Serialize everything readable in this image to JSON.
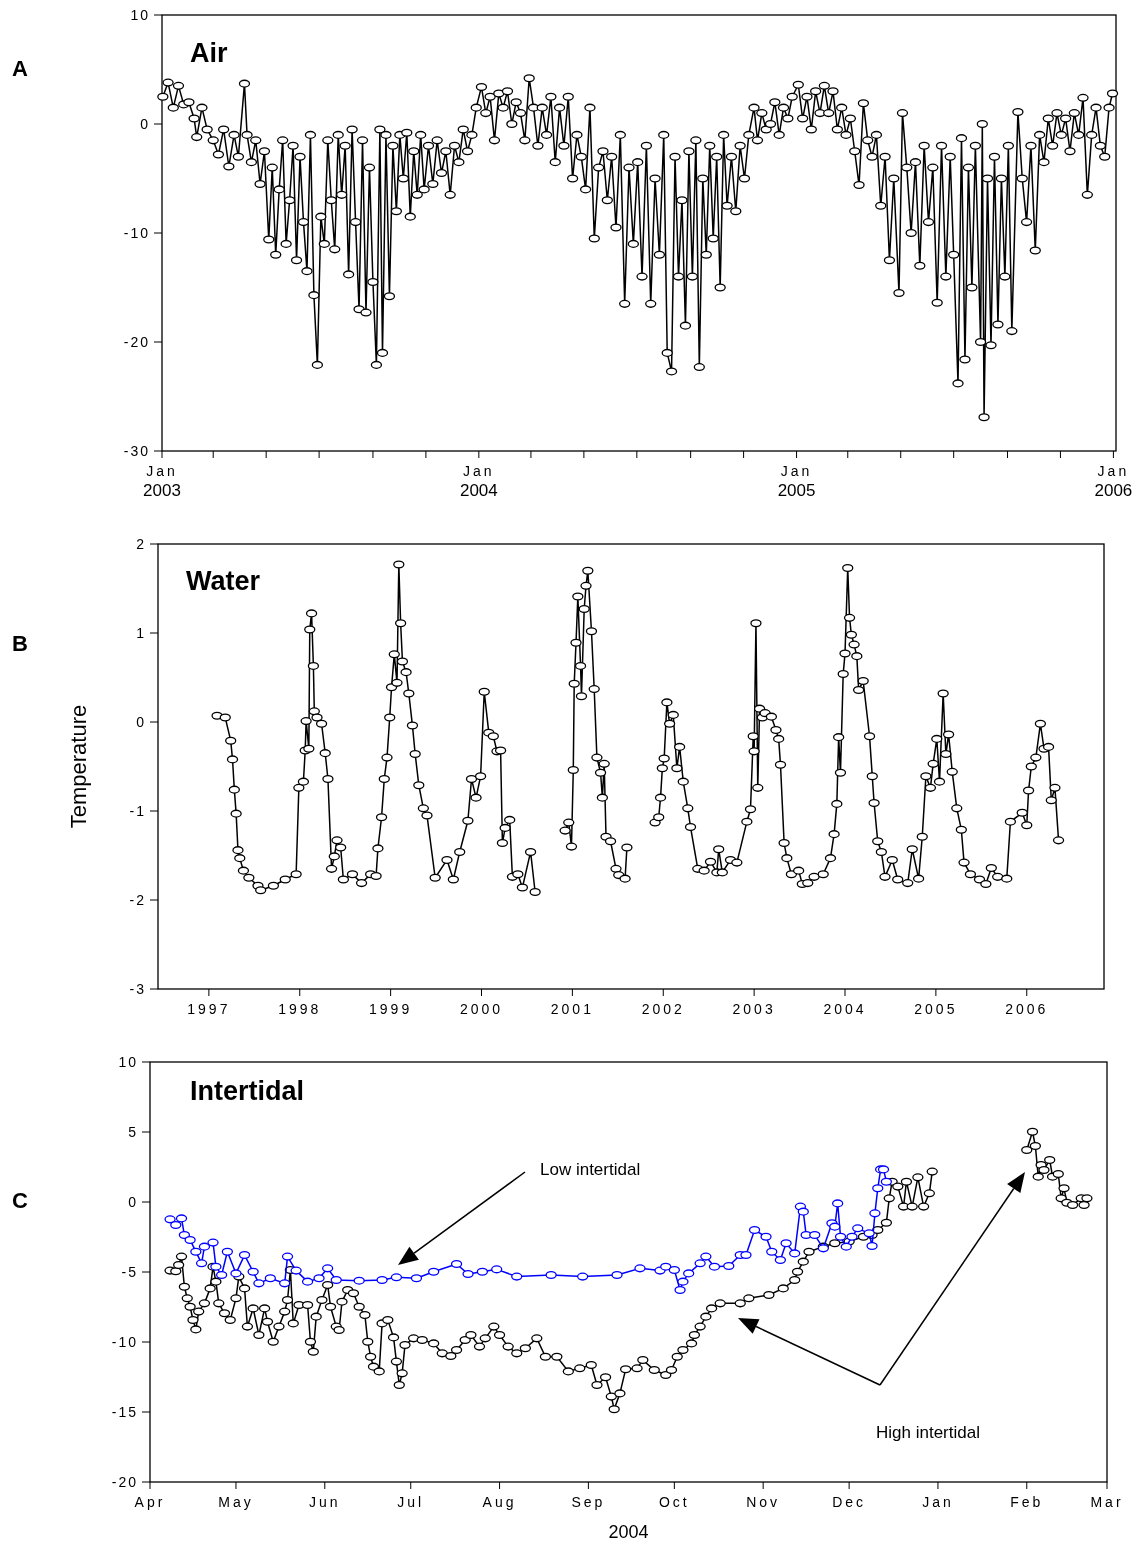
{
  "chart_data": [
    {
      "type": "line",
      "title": "Air",
      "annotations": [
        "A"
      ],
      "marker": "circle",
      "xlim": [
        "2003-01-01",
        "2006-01-04"
      ],
      "xticks": [
        {
          "value": "2003-01-01",
          "label": "Jan\n2003"
        },
        {
          "value": "2003-03-01",
          "label": null
        },
        {
          "value": "2003-05-01",
          "label": null
        },
        {
          "value": "2003-07-01",
          "label": null
        },
        {
          "value": "2003-09-01",
          "label": null
        },
        {
          "value": "2003-11-01",
          "label": null
        },
        {
          "value": "2004-01-01",
          "label": "Jan\n2004"
        },
        {
          "value": "2004-03-01",
          "label": null
        },
        {
          "value": "2004-05-01",
          "label": null
        },
        {
          "value": "2004-07-01",
          "label": null
        },
        {
          "value": "2004-09-01",
          "label": null
        },
        {
          "value": "2004-11-01",
          "label": null
        },
        {
          "value": "2005-01-01",
          "label": "Jan\n2005"
        },
        {
          "value": "2005-03-01",
          "label": null
        },
        {
          "value": "2005-05-01",
          "label": null
        },
        {
          "value": "2005-07-01",
          "label": null
        },
        {
          "value": "2005-09-01",
          "label": null
        },
        {
          "value": "2005-11-01",
          "label": null
        },
        {
          "value": "2006-01-01",
          "label": "Jan\n2006"
        }
      ],
      "ylim": [
        -30,
        10
      ],
      "yticks": [
        -30,
        -20,
        -10,
        0,
        10
      ],
      "series": [
        {
          "color": "#000000",
          "x": [
            "2003-01-02",
            "2003-01-08",
            "2003-01-14",
            "2003-01-20",
            "2003-01-26",
            "2003-02-01",
            "2003-02-07",
            "2003-02-10",
            "2003-02-16",
            "2003-02-22",
            "2003-03-01",
            "2003-03-07",
            "2003-03-13",
            "2003-03-19",
            "2003-03-25",
            "2003-03-30",
            "2003-04-06",
            "2003-04-09",
            "2003-04-14",
            "2003-04-19",
            "2003-04-24",
            "2003-04-29",
            "2003-05-04",
            "2003-05-08",
            "2003-05-12",
            "2003-05-16",
            "2003-05-20",
            "2003-05-24",
            "2003-05-28",
            "2003-06-01",
            "2003-06-05",
            "2003-06-09",
            "2003-06-13",
            "2003-06-17",
            "2003-06-21",
            "2003-06-25",
            "2003-06-29",
            "2003-07-03",
            "2003-07-07",
            "2003-07-11",
            "2003-07-15",
            "2003-07-19",
            "2003-07-23",
            "2003-07-27",
            "2003-07-31",
            "2003-08-04",
            "2003-08-08",
            "2003-08-12",
            "2003-08-16",
            "2003-08-20",
            "2003-08-24",
            "2003-08-28",
            "2003-09-01",
            "2003-09-05",
            "2003-09-09",
            "2003-09-12",
            "2003-09-16",
            "2003-09-20",
            "2003-09-24",
            "2003-09-28",
            "2003-10-02",
            "2003-10-06",
            "2003-10-10",
            "2003-10-14",
            "2003-10-18",
            "2003-10-22",
            "2003-10-26",
            "2003-10-30",
            "2003-11-04",
            "2003-11-09",
            "2003-11-14",
            "2003-11-19",
            "2003-11-24",
            "2003-11-29",
            "2003-12-04",
            "2003-12-09",
            "2003-12-14",
            "2003-12-19",
            "2003-12-24",
            "2003-12-29",
            "2004-01-04",
            "2004-01-09",
            "2004-01-14",
            "2004-01-19",
            "2004-01-24",
            "2004-01-29",
            "2004-02-03",
            "2004-02-08",
            "2004-02-13",
            "2004-02-18",
            "2004-02-23",
            "2004-02-28",
            "2004-03-04",
            "2004-03-09",
            "2004-03-14",
            "2004-03-19",
            "2004-03-24",
            "2004-03-29",
            "2004-04-03",
            "2004-04-08",
            "2004-04-13",
            "2004-04-18",
            "2004-04-23",
            "2004-04-28",
            "2004-05-03",
            "2004-05-08",
            "2004-05-13",
            "2004-05-18",
            "2004-05-23",
            "2004-05-28",
            "2004-06-02",
            "2004-06-07",
            "2004-06-12",
            "2004-06-17",
            "2004-06-22",
            "2004-06-27",
            "2004-07-02",
            "2004-07-07",
            "2004-07-12",
            "2004-07-17",
            "2004-07-22",
            "2004-07-27",
            "2004-08-01",
            "2004-08-05",
            "2004-08-10",
            "2004-08-14",
            "2004-08-18",
            "2004-08-22",
            "2004-08-26",
            "2004-08-30",
            "2004-09-03",
            "2004-09-07",
            "2004-09-11",
            "2004-09-15",
            "2004-09-19",
            "2004-09-23",
            "2004-09-27",
            "2004-10-01",
            "2004-10-05",
            "2004-10-09",
            "2004-10-13",
            "2004-10-18",
            "2004-10-23",
            "2004-10-28",
            "2004-11-02",
            "2004-11-07",
            "2004-11-13",
            "2004-11-17",
            "2004-11-22",
            "2004-11-27",
            "2004-12-02",
            "2004-12-07",
            "2004-12-12",
            "2004-12-17",
            "2004-12-22",
            "2004-12-27",
            "2005-01-03",
            "2005-01-08",
            "2005-01-13",
            "2005-01-18",
            "2005-01-23",
            "2005-01-28",
            "2005-02-02",
            "2005-02-07",
            "2005-02-12",
            "2005-02-17",
            "2005-02-22",
            "2005-02-27",
            "2005-03-04",
            "2005-03-09",
            "2005-03-14",
            "2005-03-19",
            "2005-03-24",
            "2005-03-29",
            "2005-04-03",
            "2005-04-08",
            "2005-04-13",
            "2005-04-18",
            "2005-04-23",
            "2005-04-29",
            "2005-05-03",
            "2005-05-08",
            "2005-05-13",
            "2005-05-18",
            "2005-05-23",
            "2005-05-28",
            "2005-06-02",
            "2005-06-07",
            "2005-06-12",
            "2005-06-17",
            "2005-06-22",
            "2005-06-27",
            "2005-07-01",
            "2005-07-06",
            "2005-07-10",
            "2005-07-14",
            "2005-07-18",
            "2005-07-22",
            "2005-07-26",
            "2005-08-01",
            "2005-08-03",
            "2005-08-05",
            "2005-08-09",
            "2005-08-13",
            "2005-08-17",
            "2005-08-21",
            "2005-08-25",
            "2005-08-29",
            "2005-09-02",
            "2005-09-06",
            "2005-09-13",
            "2005-09-18",
            "2005-09-23",
            "2005-09-28",
            "2005-10-03",
            "2005-10-08",
            "2005-10-13",
            "2005-10-18",
            "2005-10-23",
            "2005-10-28",
            "2005-11-02",
            "2005-11-07",
            "2005-11-12",
            "2005-11-17",
            "2005-11-22",
            "2005-11-27",
            "2005-12-02",
            "2005-12-07",
            "2005-12-12",
            "2005-12-17",
            "2005-12-22",
            "2005-12-27",
            "2005-12-31"
          ],
          "values": [
            2.5,
            3.8,
            1.5,
            3.5,
            1.8,
            2.0,
            0.5,
            -1.2,
            1.5,
            -0.5,
            -1.5,
            -2.8,
            -0.5,
            -3.9,
            -1.0,
            -3.0,
            3.7,
            -1.0,
            -3.5,
            -1.5,
            -5.5,
            -2.5,
            -10.6,
            -4.0,
            -12.0,
            -6.0,
            -1.5,
            -11.0,
            -7.0,
            -2.0,
            -12.5,
            -3.0,
            -9.0,
            -13.5,
            -1.0,
            -15.7,
            -22.1,
            -8.5,
            -11.0,
            -1.5,
            -7.0,
            -11.5,
            -1.0,
            -6.5,
            -2.0,
            -13.8,
            -0.5,
            -9.0,
            -17.0,
            -1.5,
            -17.3,
            -4.0,
            -14.5,
            -22.1,
            -0.5,
            -21.0,
            -1.0,
            -15.8,
            -2.0,
            -8.0,
            -1.0,
            -5.0,
            -0.8,
            -8.5,
            -2.5,
            -6.5,
            -1.0,
            -6.0,
            -2.0,
            -5.5,
            -1.5,
            -4.5,
            -2.5,
            -6.5,
            -2.0,
            -3.5,
            -0.5,
            -2.5,
            -1.0,
            1.5,
            3.4,
            1.0,
            2.5,
            -1.5,
            2.8,
            1.5,
            3.0,
            0.0,
            2.0,
            1.0,
            -1.5,
            4.2,
            1.5,
            -2.0,
            1.5,
            -1.0,
            2.5,
            -3.5,
            1.5,
            -2.0,
            2.5,
            -5.0,
            -1.0,
            -3.0,
            -6.0,
            1.5,
            -10.5,
            -4.0,
            -2.5,
            -7.0,
            -3.0,
            -9.5,
            -1.0,
            -16.5,
            -4.0,
            -11.0,
            -3.5,
            -14.0,
            -2.0,
            -16.5,
            -5.0,
            -12.0,
            -1.0,
            -21.0,
            -22.7,
            -3.0,
            -14.0,
            -7.0,
            -18.5,
            -2.5,
            -14.0,
            -1.5,
            -22.3,
            -5.0,
            -12.0,
            -2.0,
            -10.5,
            -3.0,
            -15.0,
            -1.0,
            -7.5,
            -3.0,
            -8.0,
            -2.0,
            -5.0,
            -1.0,
            1.5,
            -1.5,
            1.0,
            -0.5,
            0.0,
            2.0,
            -1.0,
            1.5,
            0.5,
            2.5,
            3.6,
            0.5,
            2.5,
            -0.5,
            3.0,
            1.0,
            3.5,
            1.0,
            3.0,
            -0.5,
            1.5,
            -1.0,
            0.5,
            -2.5,
            -5.6,
            1.9,
            -1.5,
            -3.0,
            -1.0,
            -7.5,
            -3.0,
            -12.5,
            -5.0,
            -15.5,
            1.0,
            -4.0,
            -10.0,
            -3.5,
            -13.0,
            -2.0,
            -9.0,
            -4.0,
            -16.4,
            -2.0,
            -14.0,
            -3.0,
            -12.0,
            -23.8,
            -1.3,
            -21.6,
            -4.0,
            -15.0,
            -2.0,
            -20.0,
            0.0,
            -26.9,
            -5.0,
            -20.3,
            -3.0,
            -18.4,
            -5.0,
            -14.0,
            -2.0,
            -19.0,
            1.1,
            -5.0,
            -9.0,
            -2.0,
            -11.6,
            -1.0,
            -3.5,
            0.5,
            -2.0,
            1.0,
            -1.0,
            0.5,
            -2.5,
            1.0,
            -1.0,
            2.4,
            -6.5,
            -1.0,
            1.5,
            -2.0,
            -3.0,
            1.5,
            2.8
          ]
        }
      ]
    },
    {
      "type": "line",
      "title": "Water",
      "ylabel": "Temperature",
      "annotations": [
        "B"
      ],
      "marker": "circle",
      "xlim": [
        1996.44,
        2006.85
      ],
      "xticks": [
        1997,
        1998,
        1999,
        2000,
        2001,
        2002,
        2003,
        2004,
        2005,
        2006
      ],
      "ylim": [
        -3,
        2
      ],
      "yticks": [
        -3,
        -2,
        -1,
        0,
        1,
        2
      ],
      "series": [
        {
          "color": "#000000",
          "x": [
            1997.09,
            1997.18,
            1997.24,
            1997.26,
            1997.28,
            1997.3,
            1997.32,
            1997.34,
            1997.38,
            1997.44,
            1997.54,
            1997.57,
            1997.71,
            1997.84,
            1997.96,
            1997.99,
            1998.04,
            1998.06,
            1998.07,
            1998.1,
            1998.11,
            1998.13,
            1998.15,
            1998.16,
            1998.19,
            1998.24,
            1998.28,
            1998.31,
            1998.35,
            1998.38,
            1998.41,
            1998.45,
            1998.48,
            1998.58,
            1998.68,
            1998.78,
            1998.84,
            1998.86,
            1998.9,
            1998.93,
            1998.96,
            1998.99,
            1999.01,
            1999.04,
            1999.07,
            1999.09,
            1999.11,
            1999.13,
            1999.17,
            1999.2,
            1999.24,
            1999.27,
            1999.31,
            1999.36,
            1999.4,
            1999.49,
            1999.62,
            1999.69,
            1999.76,
            1999.85,
            1999.89,
            1999.94,
            1999.99,
            2000.03,
            2000.08,
            2000.13,
            2000.17,
            2000.21,
            2000.23,
            2000.26,
            2000.31,
            2000.34,
            2000.4,
            2000.45,
            2000.54,
            2000.59,
            2000.75,
            2000.92,
            2000.96,
            2000.99,
            2001.01,
            2001.02,
            2001.04,
            2001.06,
            2001.09,
            2001.1,
            2001.13,
            2001.15,
            2001.17,
            2001.21,
            2001.24,
            2001.27,
            2001.31,
            2001.33,
            2001.35,
            2001.37,
            2001.42,
            2001.48,
            2001.51,
            2001.58,
            2001.6,
            2001.75,
            2001.91,
            2001.95,
            2001.97,
            2001.99,
            2002.01,
            2002.04,
            2002.07,
            2002.11,
            2002.15,
            2002.18,
            2002.22,
            2002.27,
            2002.3,
            2002.38,
            2002.45,
            2002.52,
            2002.59,
            2002.61,
            2002.65,
            2002.74,
            2002.81,
            2002.92,
            2002.96,
            2002.99,
            2003.0,
            2003.02,
            2003.04,
            2003.06,
            2003.09,
            2003.12,
            2003.19,
            2003.24,
            2003.27,
            2003.29,
            2003.33,
            2003.36,
            2003.41,
            2003.49,
            2003.53,
            2003.59,
            2003.66,
            2003.76,
            2003.84,
            2003.88,
            2003.91,
            2003.93,
            2003.95,
            2003.98,
            2004.0,
            2004.03,
            2004.05,
            2004.07,
            2004.1,
            2004.13,
            2004.15,
            2004.2,
            2004.27,
            2004.3,
            2004.32,
            2004.36,
            2004.4,
            2004.44,
            2004.52,
            2004.58,
            2004.69,
            2004.74,
            2004.81,
            2004.85,
            2004.89,
            2004.94,
            2004.97,
            2005.01,
            2005.04,
            2005.08,
            2005.11,
            2005.14,
            2005.18,
            2005.23,
            2005.28,
            2005.31,
            2005.38,
            2005.48,
            2005.55,
            2005.61,
            2005.68,
            2005.78,
            2005.82,
            2005.95,
            2006.0,
            2006.02,
            2006.05,
            2006.1,
            2006.15,
            2006.19,
            2006.24,
            2006.27,
            2006.31,
            2006.35
          ],
          "values": [
            0.07,
            0.05,
            -0.21,
            -0.42,
            -0.76,
            -1.03,
            -1.44,
            -1.53,
            -1.67,
            -1.75,
            -1.84,
            -1.89,
            -1.84,
            -1.77,
            -1.71,
            -0.74,
            -0.67,
            -0.32,
            0.01,
            -0.3,
            1.04,
            1.22,
            0.63,
            0.12,
            0.05,
            -0.02,
            -0.35,
            -0.64,
            -1.65,
            -1.51,
            -1.33,
            -1.41,
            -1.77,
            -1.71,
            -1.81,
            -1.71,
            -1.73,
            -1.42,
            -1.07,
            -0.64,
            -0.4,
            0.05,
            0.39,
            0.76,
            0.44,
            1.77,
            1.11,
            0.68,
            0.56,
            0.32,
            -0.04,
            -0.36,
            -0.71,
            -0.97,
            -1.05,
            -1.75,
            -1.55,
            -1.77,
            -1.46,
            -1.11,
            -0.64,
            -0.85,
            -0.61,
            0.34,
            -0.12,
            -0.16,
            -0.33,
            -0.32,
            -1.36,
            -1.19,
            -1.1,
            -1.74,
            -1.71,
            -1.86,
            -1.46,
            -1.91,
            null,
            -1.22,
            -1.13,
            -1.4,
            -0.54,
            0.43,
            0.89,
            1.41,
            0.63,
            0.29,
            1.27,
            1.53,
            1.7,
            1.02,
            0.37,
            -0.4,
            -0.57,
            -0.85,
            -0.47,
            -1.29,
            -1.34,
            -1.65,
            -1.72,
            -1.76,
            -1.41,
            null,
            -1.13,
            -1.07,
            -0.85,
            -0.52,
            -0.41,
            0.22,
            -0.02,
            0.08,
            -0.52,
            -0.28,
            -0.67,
            -0.97,
            -1.18,
            -1.65,
            -1.67,
            -1.57,
            -1.69,
            -1.43,
            -1.69,
            -1.55,
            -1.58,
            -1.12,
            -0.98,
            -0.16,
            -0.33,
            1.11,
            -0.74,
            0.15,
            0.05,
            0.1,
            0.06,
            -0.09,
            -0.19,
            -0.48,
            -1.36,
            -1.53,
            -1.71,
            -1.67,
            -1.82,
            -1.81,
            -1.74,
            -1.71,
            -1.53,
            -1.26,
            -0.92,
            -0.17,
            -0.57,
            0.54,
            0.77,
            1.73,
            1.17,
            0.98,
            0.87,
            0.74,
            0.36,
            0.46,
            -0.16,
            -0.61,
            -0.91,
            -1.34,
            -1.46,
            -1.74,
            -1.55,
            -1.77,
            -1.81,
            -1.43,
            -1.76,
            -1.29,
            -0.61,
            -0.74,
            -0.47,
            -0.19,
            -0.67,
            0.32,
            -0.36,
            -0.14,
            -0.56,
            -0.97,
            -1.21,
            -1.58,
            -1.71,
            -1.77,
            -1.82,
            -1.64,
            -1.74,
            -1.76,
            -1.12,
            -1.02,
            -1.16,
            -0.77,
            -0.5,
            -0.4,
            -0.02,
            -0.3,
            -0.28,
            -0.88,
            -0.74,
            -1.33
          ]
        }
      ]
    },
    {
      "type": "line",
      "title": "Intertidal",
      "xlabel": "2004",
      "marker": "circle",
      "annotations": [
        "C",
        "Low intertidal",
        "High intertidal"
      ],
      "xlim": [
        "2004-04-01",
        "2005-03-01"
      ],
      "xticks": [
        {
          "value": "2004-04-01",
          "label": "Apr"
        },
        {
          "value": "2004-05-01",
          "label": "May"
        },
        {
          "value": "2004-06-01",
          "label": "Jun"
        },
        {
          "value": "2004-07-01",
          "label": "Jul"
        },
        {
          "value": "2004-08-01",
          "label": "Aug"
        },
        {
          "value": "2004-09-01",
          "label": "Sep"
        },
        {
          "value": "2004-10-01",
          "label": "Oct"
        },
        {
          "value": "2004-11-01",
          "label": "Nov"
        },
        {
          "value": "2004-12-01",
          "label": "Dec"
        },
        {
          "value": "2005-01-01",
          "label": "Jan"
        },
        {
          "value": "2005-02-01",
          "label": "Feb"
        },
        {
          "value": "2005-03-01",
          "label": "Mar"
        }
      ],
      "ylim": [
        -20,
        10
      ],
      "yticks": [
        -20,
        -15,
        -10,
        -5,
        0,
        5,
        10
      ],
      "series": [
        {
          "color": "#000000",
          "x": [
            "2004-04-08",
            "2004-04-10",
            "2004-04-11",
            "2004-04-12",
            "2004-04-13",
            "2004-04-14",
            "2004-04-15",
            "2004-04-16",
            "2004-04-17",
            "2004-04-18",
            "2004-04-20",
            "2004-04-22",
            "2004-04-23",
            "2004-04-24",
            "2004-04-25",
            "2004-04-27",
            "2004-04-29",
            "2004-05-01",
            "2004-05-02",
            "2004-05-04",
            "2004-05-05",
            "2004-05-07",
            "2004-05-09",
            "2004-05-11",
            "2004-05-12",
            "2004-05-14",
            "2004-05-16",
            "2004-05-18",
            "2004-05-19",
            "2004-05-20",
            "2004-05-21",
            "2004-05-23",
            "2004-05-26",
            "2004-05-27",
            "2004-05-28",
            "2004-05-29",
            "2004-05-31",
            "2004-06-02",
            "2004-06-03",
            "2004-06-05",
            "2004-06-06",
            "2004-06-07",
            "2004-06-09",
            "2004-06-11",
            "2004-06-13",
            "2004-06-15",
            "2004-06-16",
            "2004-06-17",
            "2004-06-18",
            "2004-06-20",
            "2004-06-21",
            "2004-06-23",
            "2004-06-25",
            "2004-06-26",
            "2004-06-27",
            "2004-06-28",
            "2004-06-29",
            "2004-07-02",
            "2004-07-05",
            "2004-07-09",
            "2004-07-12",
            "2004-07-15",
            "2004-07-17",
            "2004-07-20",
            "2004-07-22",
            "2004-07-25",
            "2004-07-27",
            "2004-07-30",
            "2004-08-01",
            "2004-08-04",
            "2004-08-07",
            "2004-08-10",
            "2004-08-14",
            "2004-08-17",
            "2004-08-21",
            "2004-08-25",
            "2004-08-29",
            "2004-09-02",
            "2004-09-04",
            "2004-09-07",
            "2004-09-09",
            "2004-09-10",
            "2004-09-12",
            "2004-09-14",
            "2004-09-18",
            "2004-09-20",
            "2004-09-24",
            "2004-09-28",
            "2004-09-30",
            "2004-10-02",
            "2004-10-04",
            "2004-10-07",
            "2004-10-08",
            "2004-10-10",
            "2004-10-12",
            "2004-10-14",
            "2004-10-17",
            "2004-10-24",
            "2004-10-27",
            "2004-11-03",
            "2004-11-08",
            "2004-11-12",
            "2004-11-13",
            "2004-11-15",
            "2004-11-17",
            "2004-11-22",
            "2004-11-26",
            "2004-12-01",
            "2004-12-06",
            "2004-12-09",
            "2004-12-11",
            "2004-12-14",
            "2004-12-15",
            "2004-12-16",
            "2004-12-18",
            "2004-12-20",
            "2004-12-21",
            "2004-12-23",
            "2004-12-25",
            "2004-12-27",
            "2004-12-29",
            "2004-12-30",
            "2005-01-15",
            "2005-02-01",
            "2005-02-03",
            "2005-02-04",
            "2005-02-05",
            "2005-02-06",
            "2005-02-07",
            "2005-02-09",
            "2005-02-10",
            "2005-02-12",
            "2005-02-13",
            "2005-02-14",
            "2005-02-15",
            "2005-02-17",
            "2005-02-20",
            "2005-02-21",
            "2005-02-22"
          ],
          "values": [
            -4.9,
            -4.95,
            -4.5,
            -3.9,
            -6.05,
            -6.88,
            -7.48,
            -8.43,
            -9.1,
            -7.83,
            -7.24,
            -6.17,
            -4.62,
            -5.69,
            -7.24,
            -7.95,
            -8.43,
            -6.88,
            -5.33,
            -6.17,
            -8.9,
            -7.6,
            -9.5,
            -7.6,
            -8.55,
            -9.98,
            -8.9,
            -7.83,
            -7.0,
            -4.86,
            -8.67,
            -7.36,
            -7.36,
            -9.98,
            -10.7,
            -8.19,
            -7.0,
            -5.93,
            -7.48,
            -8.9,
            -9.14,
            -7.12,
            -6.29,
            -6.52,
            -7.48,
            -8.07,
            -9.98,
            -11.05,
            -11.76,
            -12.1,
            -8.67,
            -8.43,
            -9.67,
            -11.4,
            -13.07,
            -12.24,
            -10.21,
            -9.74,
            -9.86,
            -10.1,
            -10.81,
            -11.0,
            -10.57,
            -9.86,
            -9.5,
            -10.33,
            -9.74,
            -8.9,
            -9.5,
            -10.33,
            -10.81,
            -10.45,
            -9.74,
            -11.05,
            -11.05,
            -12.1,
            -11.88,
            -11.64,
            -13.07,
            -12.52,
            -13.9,
            -14.8,
            -13.67,
            -11.95,
            -11.88,
            -11.29,
            -12.0,
            -12.36,
            -12.0,
            -11.05,
            -10.57,
            -10.1,
            -9.5,
            -8.9,
            -8.19,
            -7.6,
            -7.24,
            -7.24,
            -6.88,
            -6.64,
            -6.17,
            -5.57,
            -4.98,
            -4.26,
            -3.55,
            -3.19,
            -2.95,
            -2.83,
            -2.48,
            -2.36,
            -2.0,
            -1.48,
            0.26,
            1.45,
            1.1,
            -0.33,
            1.45,
            -0.33,
            1.76,
            -0.33,
            0.62,
            2.17,
            null,
            3.71,
            5.02,
            4.0,
            1.81,
            2.64,
            2.29,
            3.0,
            1.81,
            2.0,
            0.26,
            0.98,
            -0.05,
            -0.21,
            0.26,
            -0.21,
            0.26
          ]
        },
        {
          "color": "#0000ff",
          "x": [
            "2004-04-08",
            "2004-04-10",
            "2004-04-12",
            "2004-04-13",
            "2004-04-15",
            "2004-04-17",
            "2004-04-19",
            "2004-04-20",
            "2004-04-23",
            "2004-04-24",
            "2004-04-26",
            "2004-04-28",
            "2004-05-01",
            "2004-05-04",
            "2004-05-07",
            "2004-05-09",
            "2004-05-13",
            "2004-05-18",
            "2004-05-19",
            "2004-05-22",
            "2004-05-26",
            "2004-05-30",
            "2004-06-02",
            "2004-06-05",
            "2004-06-13",
            "2004-06-21",
            "2004-06-26",
            "2004-07-03",
            "2004-07-09",
            "2004-07-17",
            "2004-07-21",
            "2004-07-26",
            "2004-07-31",
            "2004-08-07",
            "2004-08-19",
            "2004-08-30",
            "2004-09-11",
            "2004-09-19",
            "2004-09-26",
            "2004-09-28",
            "2004-10-01",
            "2004-10-03",
            "2004-10-04",
            "2004-10-06",
            "2004-10-10",
            "2004-10-12",
            "2004-10-15",
            "2004-10-20",
            "2004-10-24",
            "2004-10-26",
            "2004-10-29",
            "2004-11-02",
            "2004-11-04",
            "2004-11-07",
            "2004-11-09",
            "2004-11-12",
            "2004-11-14",
            "2004-11-15",
            "2004-11-16",
            "2004-11-19",
            "2004-11-22",
            "2004-11-25",
            "2004-11-26",
            "2004-11-27",
            "2004-11-28",
            "2004-11-30",
            "2004-12-02",
            "2004-12-04",
            "2004-12-08",
            "2004-12-09",
            "2004-12-10",
            "2004-12-11",
            "2004-12-12",
            "2004-12-13",
            "2004-12-14"
          ],
          "values": [
            -1.24,
            -1.64,
            -1.17,
            -2.36,
            -2.71,
            -3.55,
            -4.38,
            -3.19,
            -2.9,
            -4.62,
            -5.21,
            -3.55,
            -5.1,
            -3.79,
            -4.98,
            -5.81,
            -5.45,
            -5.81,
            -3.9,
            -4.9,
            -5.69,
            -5.45,
            -4.74,
            -5.57,
            -5.62,
            -5.57,
            -5.38,
            -5.45,
            -4.98,
            -4.43,
            -5.14,
            -4.98,
            -4.81,
            -5.33,
            -5.21,
            -5.33,
            -5.21,
            -4.74,
            -4.9,
            -4.62,
            -4.86,
            -6.29,
            -5.69,
            -5.1,
            -4.38,
            -3.9,
            -4.62,
            -4.57,
            -3.79,
            -3.79,
            -2.0,
            -2.48,
            -3.55,
            -4.14,
            -2.95,
            -3.67,
            -0.33,
            -0.69,
            -2.36,
            -2.36,
            -3.31,
            -1.52,
            -1.76,
            -0.1,
            -2.48,
            -3.19,
            -2.48,
            -1.88,
            -2.24,
            -3.14,
            -0.81,
            0.98,
            2.33,
            2.33,
            1.45
          ]
        }
      ]
    }
  ]
}
